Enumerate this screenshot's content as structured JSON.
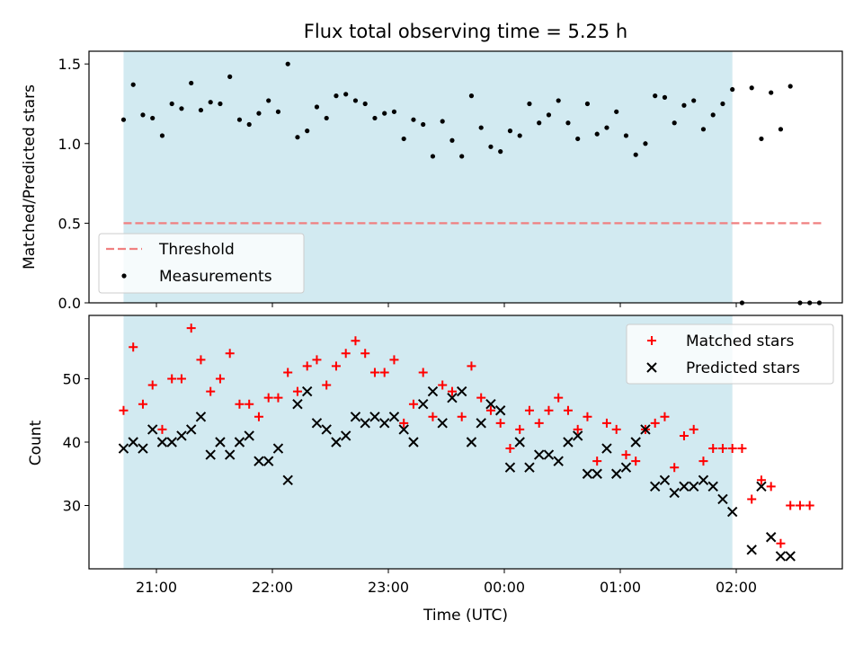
{
  "chart_data": {
    "title": "Flux total observing time = 5.25 h",
    "xlabel": "Time (UTC)",
    "x_ticks": [
      "21:00",
      "22:00",
      "23:00",
      "00:00",
      "01:00",
      "02:00"
    ],
    "observing_window": {
      "start": "20:43",
      "end": "01:58",
      "color": "#add8e6"
    },
    "panels": [
      {
        "type": "scatter",
        "ylabel": "Matched/Predicted stars",
        "ylim": [
          0,
          1.58
        ],
        "y_ticks": [
          "0.0",
          "0.5",
          "1.0",
          "1.5"
        ],
        "legend_position": "lower-left",
        "series": [
          {
            "name": "Threshold",
            "style": "dashed-line",
            "color": "#f08080",
            "x": [
              "20:43",
              "02:45"
            ],
            "y": [
              0.5,
              0.5
            ]
          },
          {
            "name": "Measurements",
            "style": "dot",
            "color": "#000000",
            "x": [
              "20:43",
              "20:48",
              "20:53",
              "20:58",
              "21:03",
              "21:08",
              "21:13",
              "21:18",
              "21:23",
              "21:28",
              "21:33",
              "21:38",
              "21:43",
              "21:48",
              "21:53",
              "21:58",
              "22:03",
              "22:08",
              "22:13",
              "22:18",
              "22:23",
              "22:28",
              "22:33",
              "22:38",
              "22:43",
              "22:48",
              "22:53",
              "22:58",
              "23:03",
              "23:08",
              "23:13",
              "23:18",
              "23:23",
              "23:28",
              "23:33",
              "23:38",
              "23:43",
              "23:48",
              "23:53",
              "23:58",
              "00:03",
              "00:08",
              "00:13",
              "00:18",
              "00:23",
              "00:28",
              "00:33",
              "00:38",
              "00:43",
              "00:48",
              "00:53",
              "00:58",
              "01:03",
              "01:08",
              "01:13",
              "01:18",
              "01:23",
              "01:28",
              "01:33",
              "01:38",
              "01:43",
              "01:48",
              "01:53",
              "01:58",
              "02:03",
              "02:08",
              "02:13",
              "02:18",
              "02:23",
              "02:28",
              "02:33",
              "02:38",
              "02:43"
            ],
            "y": [
              1.15,
              1.37,
              1.18,
              1.16,
              1.05,
              1.25,
              1.22,
              1.38,
              1.21,
              1.26,
              1.25,
              1.42,
              1.15,
              1.12,
              1.19,
              1.27,
              1.2,
              1.5,
              1.04,
              1.08,
              1.23,
              1.16,
              1.3,
              1.31,
              1.27,
              1.25,
              1.16,
              1.19,
              1.2,
              1.03,
              1.15,
              1.12,
              0.92,
              1.14,
              1.02,
              0.92,
              1.3,
              1.1,
              0.98,
              0.95,
              1.08,
              1.05,
              1.25,
              1.13,
              1.18,
              1.27,
              1.13,
              1.03,
              1.25,
              1.06,
              1.1,
              1.2,
              1.05,
              0.93,
              1.0,
              1.3,
              1.29,
              1.13,
              1.24,
              1.27,
              1.09,
              1.18,
              1.25,
              1.34,
              0.0,
              1.35,
              1.03,
              1.32,
              1.09,
              1.36,
              0.0,
              0.0,
              0.0
            ]
          }
        ]
      },
      {
        "type": "scatter",
        "ylabel": "Count",
        "ylim": [
          20,
          60
        ],
        "y_ticks": [
          "30",
          "40",
          "50"
        ],
        "legend_position": "upper-right",
        "series": [
          {
            "name": "Matched stars",
            "marker": "plus",
            "color": "#ff0000",
            "x": [
              "20:43",
              "20:48",
              "20:53",
              "20:58",
              "21:03",
              "21:08",
              "21:13",
              "21:18",
              "21:23",
              "21:28",
              "21:33",
              "21:38",
              "21:43",
              "21:48",
              "21:53",
              "21:58",
              "22:03",
              "22:08",
              "22:13",
              "22:18",
              "22:23",
              "22:28",
              "22:33",
              "22:38",
              "22:43",
              "22:48",
              "22:53",
              "22:58",
              "23:03",
              "23:08",
              "23:13",
              "23:18",
              "23:23",
              "23:28",
              "23:33",
              "23:38",
              "23:43",
              "23:48",
              "23:53",
              "23:58",
              "00:03",
              "00:08",
              "00:13",
              "00:18",
              "00:23",
              "00:28",
              "00:33",
              "00:38",
              "00:43",
              "00:48",
              "00:53",
              "00:58",
              "01:03",
              "01:08",
              "01:13",
              "01:18",
              "01:23",
              "01:28",
              "01:33",
              "01:38",
              "01:43",
              "01:48",
              "01:53",
              "01:58",
              "02:03",
              "02:08",
              "02:13",
              "02:18",
              "02:23",
              "02:28",
              "02:33",
              "02:38",
              "02:43"
            ],
            "y": [
              45,
              55,
              46,
              49,
              42,
              50,
              50,
              58,
              53,
              48,
              50,
              54,
              46,
              46,
              44,
              47,
              47,
              51,
              48,
              52,
              53,
              49,
              52,
              54,
              56,
              54,
              51,
              51,
              53,
              43,
              46,
              51,
              44,
              49,
              48,
              44,
              52,
              47,
              45,
              43,
              39,
              42,
              45,
              43,
              45,
              47,
              45,
              42,
              44,
              37,
              43,
              42,
              38,
              37,
              42,
              43,
              44,
              36,
              41,
              42,
              37,
              39,
              39,
              39,
              39,
              31,
              34,
              33,
              24,
              30,
              30,
              30,
              null
            ],
            "x_override": null
          },
          {
            "name": "Predicted stars",
            "marker": "cross",
            "color": "#000000",
            "x": [
              "20:43",
              "20:48",
              "20:53",
              "20:58",
              "21:03",
              "21:08",
              "21:13",
              "21:18",
              "21:23",
              "21:28",
              "21:33",
              "21:38",
              "21:43",
              "21:48",
              "21:53",
              "21:58",
              "22:03",
              "22:08",
              "22:13",
              "22:18",
              "22:23",
              "22:28",
              "22:33",
              "22:38",
              "22:43",
              "22:48",
              "22:53",
              "22:58",
              "23:03",
              "23:08",
              "23:13",
              "23:18",
              "23:23",
              "23:28",
              "23:33",
              "23:38",
              "23:43",
              "23:48",
              "23:53",
              "23:58",
              "00:03",
              "00:08",
              "00:13",
              "00:18",
              "00:23",
              "00:28",
              "00:33",
              "00:38",
              "00:43",
              "00:48",
              "00:53",
              "00:58",
              "01:03",
              "01:08",
              "01:13",
              "01:18",
              "01:23",
              "01:28",
              "01:33",
              "01:38",
              "01:43",
              "01:48",
              "01:53",
              "01:58",
              "02:03",
              "02:08",
              "02:13",
              "02:18",
              "02:23",
              "02:28",
              "02:33",
              "02:38",
              "02:43"
            ],
            "y": [
              39,
              40,
              39,
              42,
              40,
              40,
              41,
              42,
              44,
              38,
              40,
              38,
              40,
              41,
              37,
              37,
              39,
              34,
              46,
              48,
              43,
              42,
              40,
              41,
              44,
              43,
              44,
              43,
              44,
              42,
              40,
              46,
              48,
              43,
              47,
              48,
              40,
              43,
              46,
              45,
              36,
              40,
              36,
              38,
              38,
              37,
              40,
              41,
              35,
              35,
              39,
              35,
              36,
              40,
              42,
              33,
              34,
              32,
              33,
              33,
              34,
              33,
              31,
              29,
              null,
              23,
              33,
              25,
              22,
              22,
              null,
              null,
              null
            ]
          }
        ]
      }
    ]
  }
}
